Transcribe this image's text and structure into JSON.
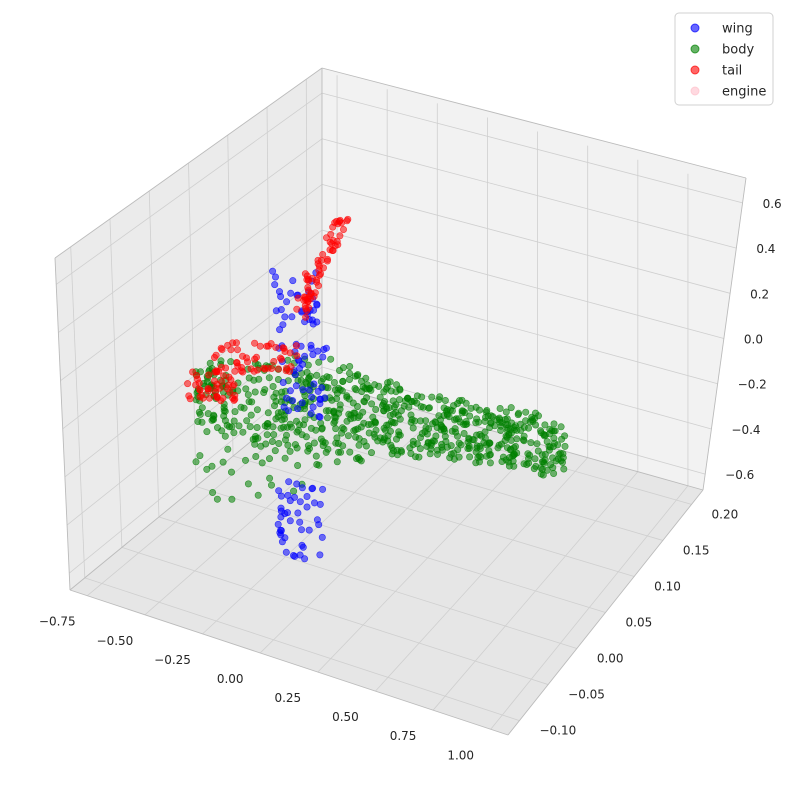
{
  "chart_data": {
    "type": "scatter",
    "projection": "3d",
    "grid": true,
    "legend_position": "top-right",
    "axes": {
      "x": {
        "ticks": [
          "−0.75",
          "−0.50",
          "−0.25",
          "0.00",
          "0.25",
          "0.50",
          "0.75",
          "1.00"
        ],
        "lim": [
          -0.8,
          1.05
        ]
      },
      "y": {
        "ticks": [
          "−0.10",
          "−0.05",
          "0.00",
          "0.05",
          "0.10",
          "0.15",
          "0.20"
        ],
        "lim": [
          -0.11,
          0.22
        ]
      },
      "z": {
        "ticks": [
          "−0.6",
          "−0.4",
          "−0.2",
          "0.0",
          "0.2",
          "0.4",
          "0.6"
        ],
        "lim": [
          -0.7,
          0.7
        ]
      }
    },
    "series": [
      {
        "name": "wing",
        "color": "#0000ff",
        "point_count": 120
      },
      {
        "name": "body",
        "color": "#008000",
        "point_count": 700
      },
      {
        "name": "tail",
        "color": "#ff0000",
        "point_count": 160
      },
      {
        "name": "engine",
        "color": "#ffc0cb",
        "point_count": 0
      }
    ]
  }
}
